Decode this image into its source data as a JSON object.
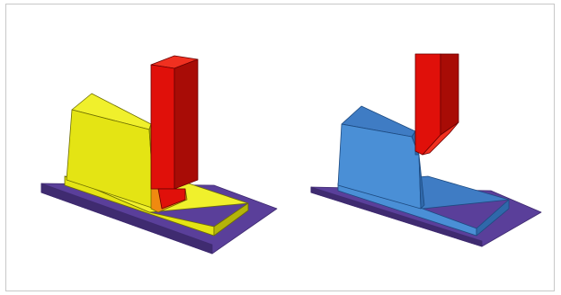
{
  "figure": {
    "panels": [
      {
        "id": "before",
        "description_shapes": [
          "base-plate",
          "workpiece",
          "cutting-tool",
          "intersection-region"
        ]
      },
      {
        "id": "after",
        "description_shapes": [
          "base-plate",
          "workpiece-cut",
          "cutting-tool"
        ]
      }
    ]
  },
  "colors": {
    "plate": "#5a3f9a",
    "plate_edge": "#3f2b70",
    "yellow_front": "#e4e414",
    "yellow_top": "#f0f02c",
    "yellow_side": "#b4b40a",
    "yellow_edge": "#6d6d00",
    "orange": "#f08a10",
    "red_front": "#e0100a",
    "red_top": "#f03020",
    "red_side": "#a80c06",
    "red_edge": "#6a0000",
    "blue_front": "#4a8fd6",
    "blue_top": "#3f7cc4",
    "blue_side": "#2f68aa",
    "blue_edge": "#1d4a80",
    "frame_border": "#c8c8c8"
  }
}
